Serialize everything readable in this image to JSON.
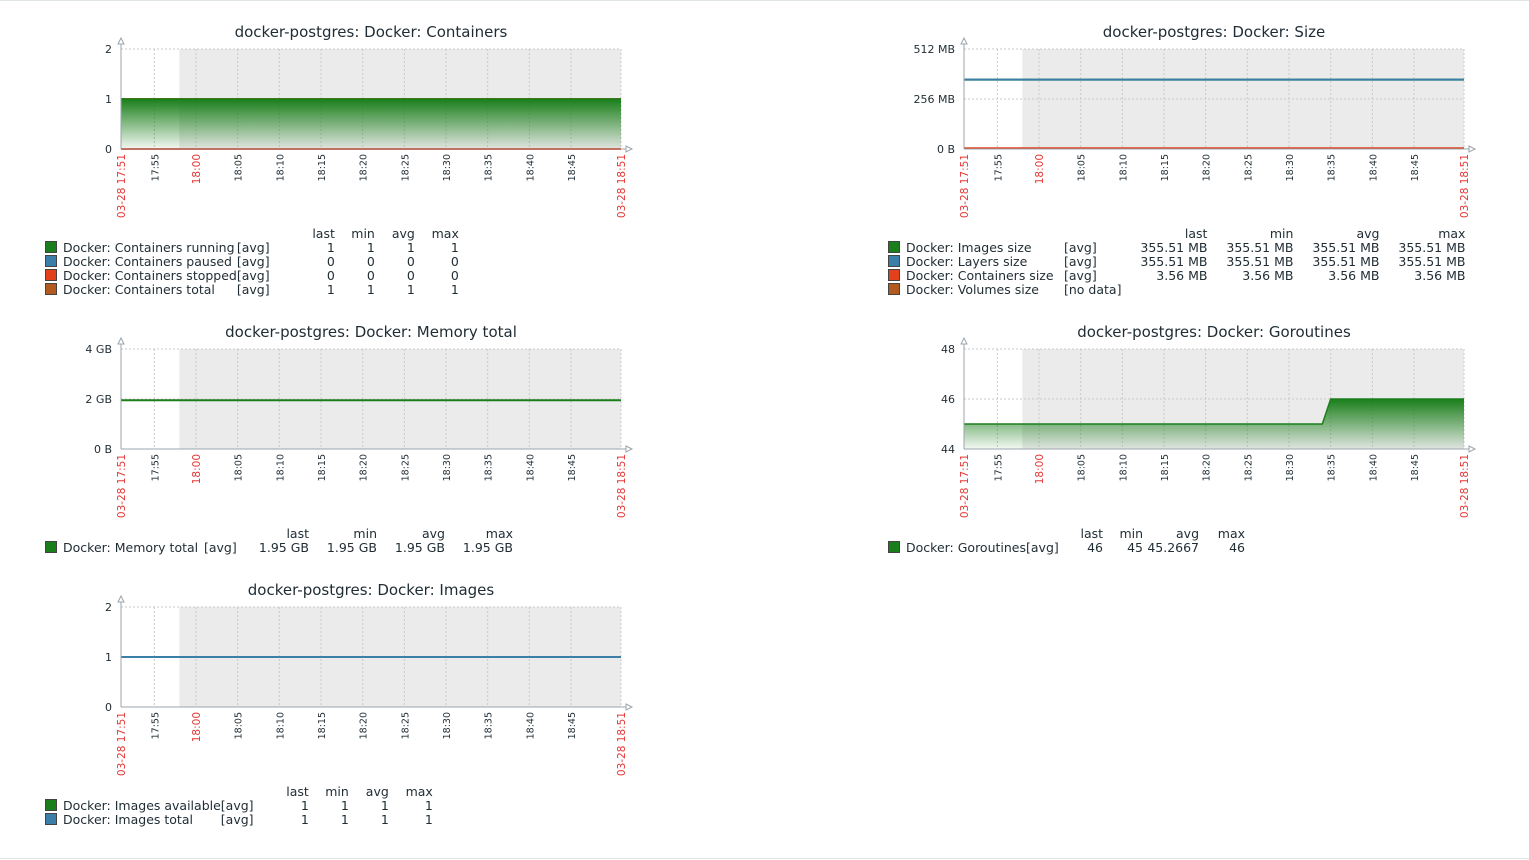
{
  "colors": {
    "green": "#1a7f1a",
    "blue": "#3b7fa8",
    "red": "#e3401c",
    "brown": "#b35a1f",
    "grid": "#c9c9c9",
    "shade": "#ebebeb",
    "red_label": "#e33734"
  },
  "chart_data": [
    {
      "id": "containers",
      "type": "area",
      "title": "docker-postgres: Docker: Containers",
      "y_ticks": [
        "2",
        "1",
        "0"
      ],
      "ylim": [
        0,
        2
      ],
      "x_start_label": "03-28 17:51",
      "x_end_label": "03-28 18:51",
      "x_ticks": [
        "17:55",
        "18:00",
        "18:05",
        "18:10",
        "18:15",
        "18:20",
        "18:25",
        "18:30",
        "18:35",
        "18:40",
        "18:45"
      ],
      "series": [
        {
          "name": "Docker: Containers total",
          "color": "brown",
          "style": "line",
          "values": [
            1,
            1
          ]
        },
        {
          "name": "Docker: Containers running",
          "color": "green",
          "style": "gradient",
          "values": [
            1,
            1
          ]
        },
        {
          "name": "Docker: Containers stopped",
          "color": "red",
          "style": "line",
          "values": [
            0,
            0
          ]
        }
      ],
      "legend": {
        "headers": [
          "last",
          "min",
          "avg",
          "max"
        ],
        "rows": [
          {
            "color": "green",
            "name": "Docker: Containers running",
            "func": "[avg]",
            "last": "1",
            "min": "1",
            "avg": "1",
            "max": "1"
          },
          {
            "color": "blue",
            "name": "Docker: Containers paused",
            "func": "[avg]",
            "last": "0",
            "min": "0",
            "avg": "0",
            "max": "0"
          },
          {
            "color": "red",
            "name": "Docker: Containers stopped",
            "func": "[avg]",
            "last": "0",
            "min": "0",
            "avg": "0",
            "max": "0"
          },
          {
            "color": "brown",
            "name": "Docker: Containers total",
            "func": "[avg]",
            "last": "1",
            "min": "1",
            "avg": "1",
            "max": "1"
          }
        ]
      }
    },
    {
      "id": "size",
      "type": "line",
      "title": "docker-postgres: Docker: Size",
      "y_ticks": [
        "512 MB",
        "256 MB",
        "0 B"
      ],
      "ylim": [
        0,
        512
      ],
      "x_start_label": "03-28 17:51",
      "x_end_label": "03-28 18:51",
      "x_ticks": [
        "17:55",
        "18:00",
        "18:05",
        "18:10",
        "18:15",
        "18:20",
        "18:25",
        "18:30",
        "18:35",
        "18:40",
        "18:45"
      ],
      "series": [
        {
          "name": "Docker: Images size",
          "color": "green",
          "style": "line",
          "values": [
            355.51,
            355.51
          ]
        },
        {
          "name": "Docker: Layers size",
          "color": "blue",
          "style": "line",
          "values": [
            355.51,
            355.51
          ]
        },
        {
          "name": "Docker: Containers size",
          "color": "red",
          "style": "line",
          "values": [
            3.56,
            3.56
          ]
        }
      ],
      "legend": {
        "headers": [
          "last",
          "min",
          "avg",
          "max"
        ],
        "rows": [
          {
            "color": "green",
            "name": "Docker: Images size",
            "func": "[avg]",
            "last": "355.51 MB",
            "min": "355.51 MB",
            "avg": "355.51 MB",
            "max": "355.51 MB"
          },
          {
            "color": "blue",
            "name": "Docker: Layers size",
            "func": "[avg]",
            "last": "355.51 MB",
            "min": "355.51 MB",
            "avg": "355.51 MB",
            "max": "355.51 MB"
          },
          {
            "color": "red",
            "name": "Docker: Containers size",
            "func": "[avg]",
            "last": "3.56 MB",
            "min": "3.56 MB",
            "avg": "3.56 MB",
            "max": "3.56 MB"
          },
          {
            "color": "brown",
            "name": "Docker: Volumes size",
            "func": "[no data]",
            "last": "",
            "min": "",
            "avg": "",
            "max": ""
          }
        ]
      }
    },
    {
      "id": "memory",
      "type": "line",
      "title": "docker-postgres: Docker: Memory total",
      "y_ticks": [
        "4 GB",
        "2 GB",
        "0 B"
      ],
      "ylim": [
        0,
        4
      ],
      "x_start_label": "03-28 17:51",
      "x_end_label": "03-28 18:51",
      "x_ticks": [
        "17:55",
        "18:00",
        "18:05",
        "18:10",
        "18:15",
        "18:20",
        "18:25",
        "18:30",
        "18:35",
        "18:40",
        "18:45"
      ],
      "series": [
        {
          "name": "Docker: Memory total",
          "color": "green",
          "style": "line",
          "values": [
            1.95,
            1.95
          ]
        }
      ],
      "legend": {
        "headers": [
          "last",
          "min",
          "avg",
          "max"
        ],
        "rows": [
          {
            "color": "green",
            "name": "Docker: Memory total",
            "func": "[avg]",
            "last": "1.95 GB",
            "min": "1.95 GB",
            "avg": "1.95 GB",
            "max": "1.95 GB"
          }
        ]
      }
    },
    {
      "id": "goroutines",
      "type": "area",
      "title": "docker-postgres: Docker: Goroutines",
      "y_ticks": [
        "48",
        "46",
        "44"
      ],
      "ylim": [
        44,
        48
      ],
      "x_start_label": "03-28 17:51",
      "x_end_label": "03-28 18:51",
      "x_ticks": [
        "17:55",
        "18:00",
        "18:05",
        "18:10",
        "18:15",
        "18:20",
        "18:25",
        "18:30",
        "18:35",
        "18:40",
        "18:45"
      ],
      "series": [
        {
          "name": "Docker: Goroutines",
          "color": "green",
          "style": "gradient",
          "points": [
            [
              0,
              45
            ],
            [
              43,
              45
            ],
            [
              44,
              46
            ],
            [
              60,
              46
            ]
          ]
        }
      ],
      "legend": {
        "headers": [
          "last",
          "min",
          "avg",
          "max"
        ],
        "rows": [
          {
            "color": "green",
            "name": "Docker: Goroutines",
            "func": "[avg]",
            "last": "46",
            "min": "45",
            "avg": "45.2667",
            "max": "46"
          }
        ]
      }
    },
    {
      "id": "images",
      "type": "line",
      "title": "docker-postgres: Docker: Images",
      "y_ticks": [
        "2",
        "1",
        "0"
      ],
      "ylim": [
        0,
        2
      ],
      "x_start_label": "03-28 17:51",
      "x_end_label": "03-28 18:51",
      "x_ticks": [
        "17:55",
        "18:00",
        "18:05",
        "18:10",
        "18:15",
        "18:20",
        "18:25",
        "18:30",
        "18:35",
        "18:40",
        "18:45"
      ],
      "series": [
        {
          "name": "Docker: Images available",
          "color": "green",
          "style": "line",
          "values": [
            1,
            1
          ]
        },
        {
          "name": "Docker: Images total",
          "color": "blue",
          "style": "line",
          "values": [
            1,
            1
          ]
        }
      ],
      "legend": {
        "headers": [
          "last",
          "min",
          "avg",
          "max"
        ],
        "rows": [
          {
            "color": "green",
            "name": "Docker: Images available",
            "func": "[avg]",
            "last": "1",
            "min": "1",
            "avg": "1",
            "max": "1"
          },
          {
            "color": "blue",
            "name": "Docker: Images total",
            "func": "[avg]",
            "last": "1",
            "min": "1",
            "avg": "1",
            "max": "1"
          }
        ]
      }
    }
  ]
}
